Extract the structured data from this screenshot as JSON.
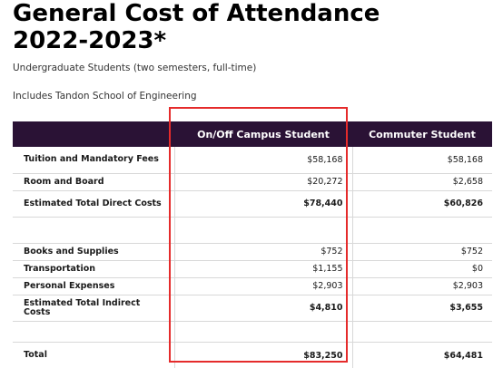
{
  "title_line1": "General Cost of Attendance",
  "title_line2": "2022-2023*",
  "subtitle": "Undergraduate Students (two semesters, full-time)",
  "note": "Includes Tandon School of Engineering",
  "table": {
    "headers": [
      "",
      "On/Off Campus Student",
      "Commuter Student"
    ],
    "rows": [
      {
        "label": "Tuition and Mandatory Fees",
        "oncampus": "$58,168",
        "commuter": "$58,168"
      },
      {
        "label": "Room and Board",
        "oncampus": "$20,272",
        "commuter": "$2,658"
      },
      {
        "label": "Estimated Total Direct Costs",
        "oncampus": "$78,440",
        "commuter": "$60,826"
      },
      {
        "label": "Books and Supplies",
        "oncampus": "$752",
        "commuter": "$752"
      },
      {
        "label": "Transportation",
        "oncampus": "$1,155",
        "commuter": "$0"
      },
      {
        "label": "Personal Expenses",
        "oncampus": "$2,903",
        "commuter": "$2,903"
      },
      {
        "label": "Estimated Total Indirect Costs",
        "oncampus": "$4,810",
        "commuter": "$3,655"
      },
      {
        "label": "Total",
        "oncampus": "$83,250",
        "commuter": "$64,481"
      }
    ]
  },
  "highlight_color": "#e52b2b",
  "header_bg": "#2a1235"
}
